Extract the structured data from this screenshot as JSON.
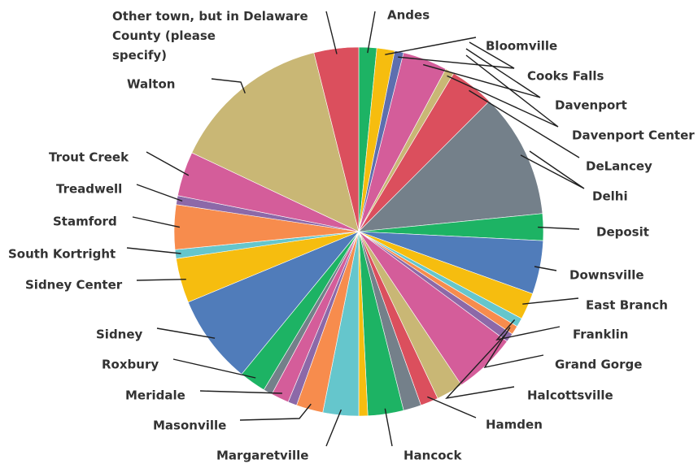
{
  "chart_data": {
    "type": "pie",
    "start_angle_deg": 0,
    "direction": "clockwise",
    "slices": [
      {
        "label": "Andes",
        "value": 1.6,
        "color": "#1DB364"
      },
      {
        "label": "Bloomville",
        "value": 1.6,
        "color": "#F6BD0F"
      },
      {
        "label": "Cooks Falls",
        "value": 0.8,
        "color": "#5D6FAF"
      },
      {
        "label": "Davenport",
        "value": 4.0,
        "color": "#D45D9A"
      },
      {
        "label": "Davenport Center",
        "value": 0.8,
        "color": "#C9B775"
      },
      {
        "label": "DeLancey",
        "value": 4.0,
        "color": "#DB4F5D"
      },
      {
        "label": "Delhi",
        "value": 11.2,
        "color": "#74808A"
      },
      {
        "label": "Deposit",
        "value": 2.4,
        "color": "#1DB364"
      },
      {
        "label": "Downsville",
        "value": 4.8,
        "color": "#507CBA"
      },
      {
        "label": "East Branch",
        "value": 2.4,
        "color": "#F6BD0F"
      },
      {
        "label": "Franklin",
        "value": 0.8,
        "color": "#65C6CC"
      },
      {
        "label": "Grand Gorge",
        "value": 0.8,
        "color": "#F78C4D"
      },
      {
        "label": "Halcottsville",
        "value": 0.8,
        "color": "#8C69A8"
      },
      {
        "label": "",
        "value": 5.6,
        "color": "#D45D9A"
      },
      {
        "label": "",
        "value": 2.4,
        "color": "#C9B775"
      },
      {
        "label": "Hamden",
        "value": 1.6,
        "color": "#DB4F5D"
      },
      {
        "label": "",
        "value": 1.6,
        "color": "#74808A"
      },
      {
        "label": "Hancock",
        "value": 3.2,
        "color": "#1DB364"
      },
      {
        "label": "",
        "value": 0.8,
        "color": "#F6BD0F"
      },
      {
        "label": "Margaretville",
        "value": 3.2,
        "color": "#65C6CC"
      },
      {
        "label": "Masonville",
        "value": 2.4,
        "color": "#F78C4D"
      },
      {
        "label": "",
        "value": 0.8,
        "color": "#8C69A8"
      },
      {
        "label": "Meridale",
        "value": 1.6,
        "color": "#D45D9A"
      },
      {
        "label": "",
        "value": 0.8,
        "color": "#74808A"
      },
      {
        "label": "Roxbury",
        "value": 2.4,
        "color": "#1DB364"
      },
      {
        "label": "Sidney",
        "value": 8.0,
        "color": "#507CBA"
      },
      {
        "label": "Sidney Center",
        "value": 4.0,
        "color": "#F6BD0F"
      },
      {
        "label": "South Kortright",
        "value": 0.8,
        "color": "#65C6CC"
      },
      {
        "label": "Stamford",
        "value": 4.0,
        "color": "#F78C4D"
      },
      {
        "label": "Treadwell",
        "value": 0.8,
        "color": "#8C69A8"
      },
      {
        "label": "Trout Creek",
        "value": 4.0,
        "color": "#D45D9A"
      },
      {
        "label": "Walton",
        "value": 14.4,
        "color": "#C9B775"
      },
      {
        "label": "Other town, but in Delaware County (please specify)",
        "value": 4.0,
        "color": "#DB4F5D"
      }
    ]
  }
}
